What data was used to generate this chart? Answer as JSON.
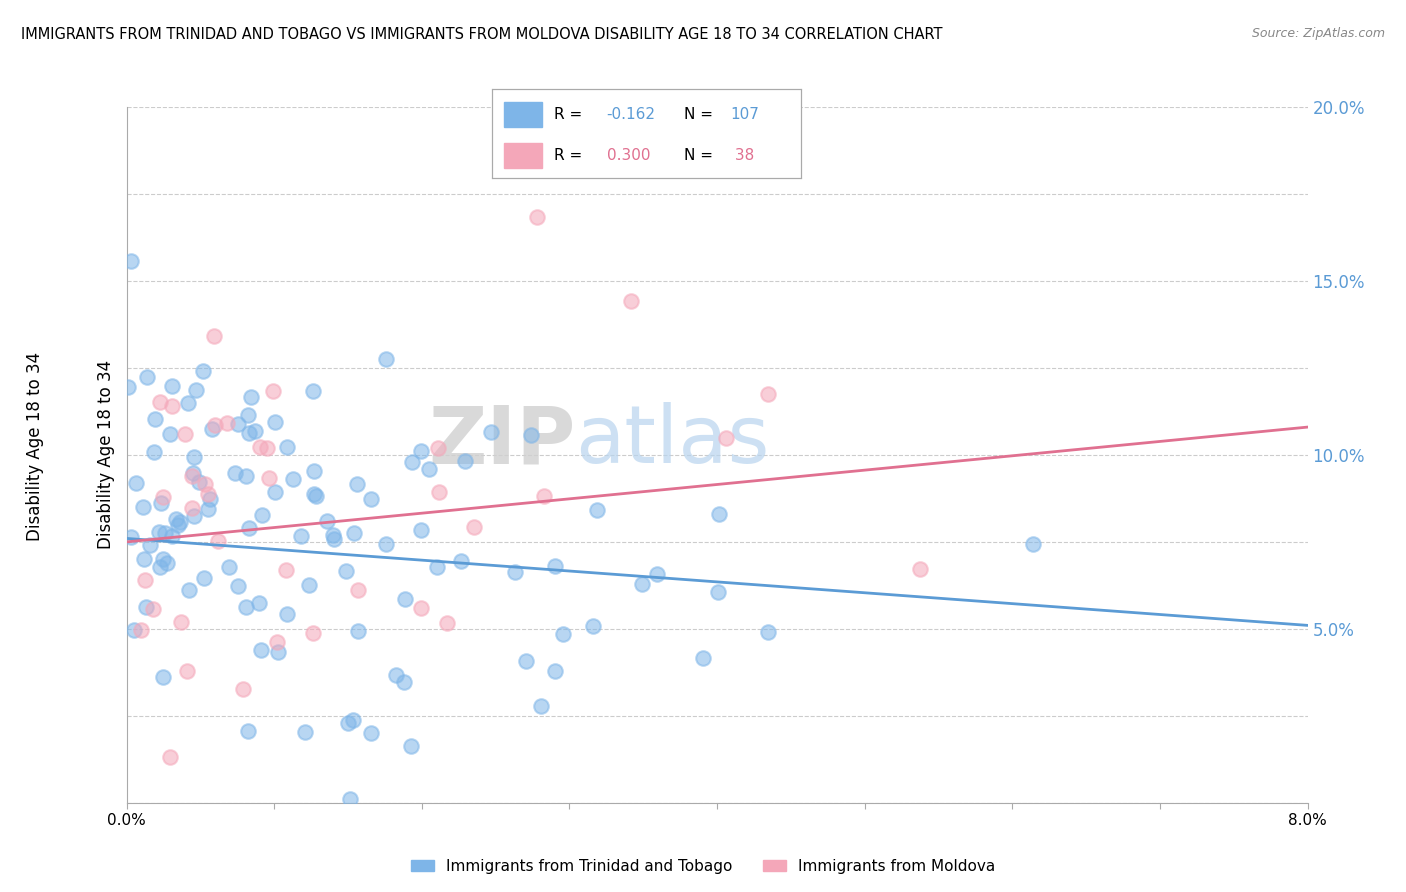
{
  "title": "IMMIGRANTS FROM TRINIDAD AND TOBAGO VS IMMIGRANTS FROM MOLDOVA DISABILITY AGE 18 TO 34 CORRELATION CHART",
  "source": "Source: ZipAtlas.com",
  "watermark_zip": "ZIP",
  "watermark_atlas": "atlas",
  "series1_label": "Immigrants from Trinidad and Tobago",
  "series1_color": "#7EB5E8",
  "series1_line_color": "#5B9BD5",
  "series1_R": -0.162,
  "series1_N": 107,
  "series2_label": "Immigrants from Moldova",
  "series2_color": "#F4A7B9",
  "series2_line_color": "#E07090",
  "series2_R": 0.3,
  "series2_N": 38,
  "xmin": 0.0,
  "xmax": 0.08,
  "ymin": 0.0,
  "ymax": 0.2,
  "ytick_color": "#5B9BD5",
  "background_color": "#ffffff",
  "grid_color": "#cccccc",
  "ylabel": "Disability Age 18 to 34",
  "legend_R1": "R = ",
  "legend_R1_val": "-0.162",
  "legend_N1": "N = ",
  "legend_N1_val": "107",
  "legend_R2_val": "0.300",
  "legend_N2_val": "38"
}
